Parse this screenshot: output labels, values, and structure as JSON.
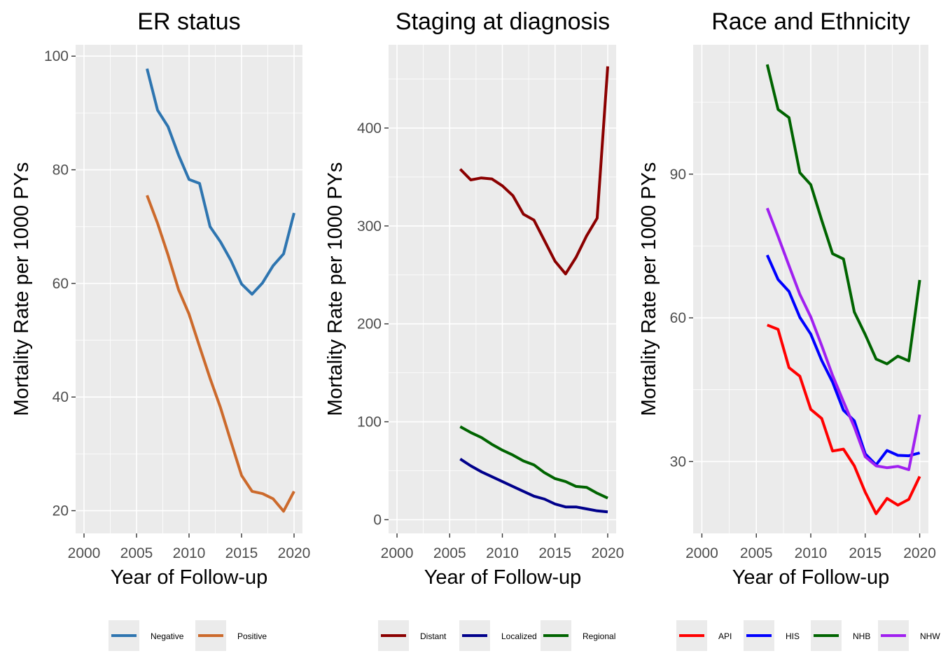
{
  "chart_data": [
    {
      "type": "line",
      "title": "ER status",
      "xlabel": "Year of Follow-up",
      "ylabel": "Mortality Rate per 1000 PYs",
      "xlim": [
        1999.2,
        2020.8
      ],
      "ylim": [
        16,
        102
      ],
      "x_ticks": [
        2000,
        2005,
        2010,
        2015,
        2020
      ],
      "y_ticks": [
        20,
        40,
        60,
        80,
        100
      ],
      "grid": true,
      "legend_position": "bottom",
      "series": [
        {
          "name": "Negative",
          "color": "#2e75b0",
          "x": [
            2006,
            2007,
            2008,
            2009,
            2010,
            2011,
            2012,
            2013,
            2014,
            2015,
            2016,
            2017,
            2018,
            2019,
            2020
          ],
          "y": [
            97.8,
            90.5,
            87.6,
            82.6,
            78.3,
            77.6,
            70.0,
            67.3,
            64.0,
            59.9,
            58.1,
            60.1,
            63.1,
            65.2,
            72.4
          ]
        },
        {
          "name": "Positive",
          "color": "#cc6a2c",
          "x": [
            2006,
            2007,
            2008,
            2009,
            2010,
            2011,
            2012,
            2013,
            2014,
            2015,
            2016,
            2017,
            2018,
            2019,
            2020
          ],
          "y": [
            75.5,
            70.6,
            65.0,
            58.9,
            54.6,
            48.9,
            43.3,
            38.1,
            32.1,
            26.2,
            23.4,
            23.0,
            22.1,
            19.9,
            23.4
          ]
        }
      ]
    },
    {
      "type": "line",
      "title": "Staging at diagnosis",
      "xlabel": "Year of Follow-up",
      "ylabel": "Mortality Rate per 1000 PYs",
      "xlim": [
        1999.2,
        2020.8
      ],
      "ylim": [
        -14,
        485
      ],
      "x_ticks": [
        2000,
        2005,
        2010,
        2015,
        2020
      ],
      "y_ticks": [
        0,
        100,
        200,
        300,
        400
      ],
      "grid": true,
      "legend_position": "bottom",
      "series": [
        {
          "name": "Distant",
          "color": "#8b0000",
          "x": [
            2006,
            2007,
            2008,
            2009,
            2010,
            2011,
            2012,
            2013,
            2014,
            2015,
            2016,
            2017,
            2018,
            2019,
            2020
          ],
          "y": [
            358,
            347,
            349,
            348,
            341,
            331,
            312,
            306,
            285,
            264,
            251,
            268,
            290,
            308,
            463
          ]
        },
        {
          "name": "Localized",
          "color": "#00008b",
          "x": [
            2006,
            2007,
            2008,
            2009,
            2010,
            2011,
            2012,
            2013,
            2014,
            2015,
            2016,
            2017,
            2018,
            2019,
            2020
          ],
          "y": [
            62,
            55,
            49,
            44,
            39,
            34,
            29,
            24,
            21,
            16,
            13,
            13,
            11,
            9,
            8
          ]
        },
        {
          "name": "Regional",
          "color": "#006400",
          "x": [
            2006,
            2007,
            2008,
            2009,
            2010,
            2011,
            2012,
            2013,
            2014,
            2015,
            2016,
            2017,
            2018,
            2019,
            2020
          ],
          "y": [
            95,
            89,
            84,
            77,
            71,
            66,
            60,
            56,
            48,
            42,
            39,
            34,
            33,
            27,
            22
          ]
        }
      ]
    },
    {
      "type": "line",
      "title": "Race and Ethnicity",
      "xlabel": "Year of Follow-up",
      "ylabel": "Mortality Rate per 1000 PYs",
      "xlim": [
        1999.2,
        2020.8
      ],
      "ylim": [
        15,
        117
      ],
      "x_ticks": [
        2000,
        2005,
        2010,
        2015,
        2020
      ],
      "y_ticks": [
        30,
        60,
        90
      ],
      "grid": true,
      "legend_position": "bottom",
      "series": [
        {
          "name": "API",
          "color": "#ff0000",
          "x": [
            2006,
            2007,
            2008,
            2009,
            2010,
            2011,
            2012,
            2013,
            2014,
            2015,
            2016,
            2017,
            2018,
            2019,
            2020
          ],
          "y": [
            58.5,
            57.6,
            49.6,
            47.8,
            40.9,
            39.0,
            32.2,
            32.6,
            29.1,
            23.6,
            19.1,
            22.3,
            20.9,
            22.1,
            26.9
          ]
        },
        {
          "name": "HIS",
          "color": "#0000ff",
          "x": [
            2006,
            2007,
            2008,
            2009,
            2010,
            2011,
            2012,
            2013,
            2014,
            2015,
            2016,
            2017,
            2018,
            2019,
            2020
          ],
          "y": [
            73.1,
            68.0,
            65.5,
            60.1,
            56.6,
            51.1,
            46.6,
            40.7,
            38.5,
            31.6,
            29.3,
            32.3,
            31.3,
            31.2,
            31.8
          ]
        },
        {
          "name": "NHB",
          "color": "#006400",
          "x": [
            2006,
            2007,
            2008,
            2009,
            2010,
            2011,
            2012,
            2013,
            2014,
            2015,
            2016,
            2017,
            2018,
            2019,
            2020
          ],
          "y": [
            112.9,
            103.5,
            101.8,
            90.3,
            87.8,
            80.4,
            73.4,
            72.3,
            61.2,
            56.5,
            51.4,
            50.4,
            52.0,
            51.0,
            67.9
          ]
        },
        {
          "name": "NHW",
          "color": "#a020f0",
          "x": [
            2006,
            2007,
            2008,
            2009,
            2010,
            2011,
            2012,
            2013,
            2014,
            2015,
            2016,
            2017,
            2018,
            2019,
            2020
          ],
          "y": [
            82.9,
            77.0,
            70.9,
            64.9,
            60.2,
            54.2,
            48.0,
            42.5,
            37.2,
            31.0,
            29.1,
            28.7,
            29.0,
            28.3,
            39.8
          ]
        }
      ]
    }
  ]
}
